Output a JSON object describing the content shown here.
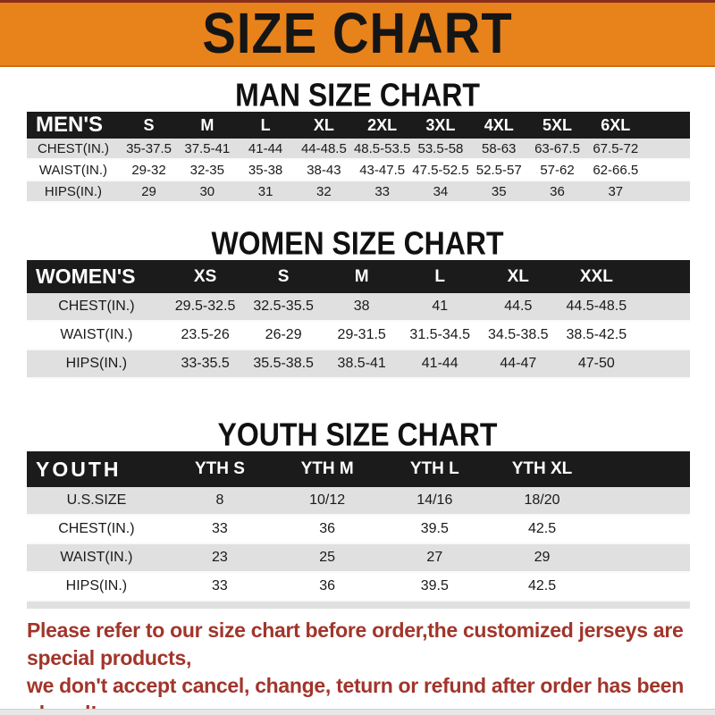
{
  "page": {
    "title": "SIZE CHART"
  },
  "colors": {
    "banner_orange": "#e8821b",
    "banner_top_line": "#8a2f1d",
    "table_header_black": "#1b1b1b",
    "row_gray": "#e0e0e0",
    "footer_red": "#a1352b"
  },
  "sections": [
    {
      "id": "men",
      "heading": "MAN SIZE CHART",
      "label": "MEN'S",
      "sizes": [
        "S",
        "M",
        "L",
        "XL",
        "2XL",
        "3XL",
        "4XL",
        "5XL",
        "6XL"
      ],
      "rows": [
        {
          "label": "CHEST(IN.)",
          "values": [
            "35-37.5",
            "37.5-41",
            "41-44",
            "44-48.5",
            "48.5-53.5",
            "53.5-58",
            "58-63",
            "63-67.5",
            "67.5-72"
          ]
        },
        {
          "label": "WAIST(IN.)",
          "values": [
            "29-32",
            "32-35",
            "35-38",
            "38-43",
            "43-47.5",
            "47.5-52.5",
            "52.5-57",
            "57-62",
            "62-66.5"
          ]
        },
        {
          "label": "HIPS(IN.)",
          "values": [
            "29",
            "30",
            "31",
            "32",
            "33",
            "34",
            "35",
            "36",
            "37"
          ]
        }
      ]
    },
    {
      "id": "women",
      "heading": "WOMEN SIZE CHART",
      "label": "WOMEN'S",
      "sizes": [
        "XS",
        "S",
        "M",
        "L",
        "XL",
        "XXL"
      ],
      "rows": [
        {
          "label": "CHEST(IN.)",
          "values": [
            "29.5-32.5",
            "32.5-35.5",
            "38",
            "41",
            "44.5",
            "44.5-48.5"
          ]
        },
        {
          "label": "WAIST(IN.)",
          "values": [
            "23.5-26",
            "26-29",
            "29-31.5",
            "31.5-34.5",
            "34.5-38.5",
            "38.5-42.5"
          ]
        },
        {
          "label": "HIPS(IN.)",
          "values": [
            "33-35.5",
            "35.5-38.5",
            "38.5-41",
            "41-44",
            "44-47",
            "47-50"
          ]
        }
      ]
    },
    {
      "id": "youth",
      "heading": "YOUTH SIZE CHART",
      "label": "YOUTH",
      "sizes": [
        "YTH S",
        "YTH M",
        "YTH L",
        "YTH XL"
      ],
      "rows": [
        {
          "label": "U.S.SIZE",
          "values": [
            "8",
            "10/12",
            "14/16",
            "18/20"
          ]
        },
        {
          "label": "CHEST(IN.)",
          "values": [
            "33",
            "36",
            "39.5",
            "42.5"
          ]
        },
        {
          "label": "WAIST(IN.)",
          "values": [
            "23",
            "25",
            "27",
            "29"
          ]
        },
        {
          "label": "HIPS(IN.)",
          "values": [
            "33",
            "36",
            "39.5",
            "42.5"
          ]
        }
      ]
    }
  ],
  "footer": {
    "line1": "Please refer to our size chart before order,the customized jerseys are special products,",
    "line2": "we don't accept cancel, change, teturn or refund after order has been placed!"
  }
}
